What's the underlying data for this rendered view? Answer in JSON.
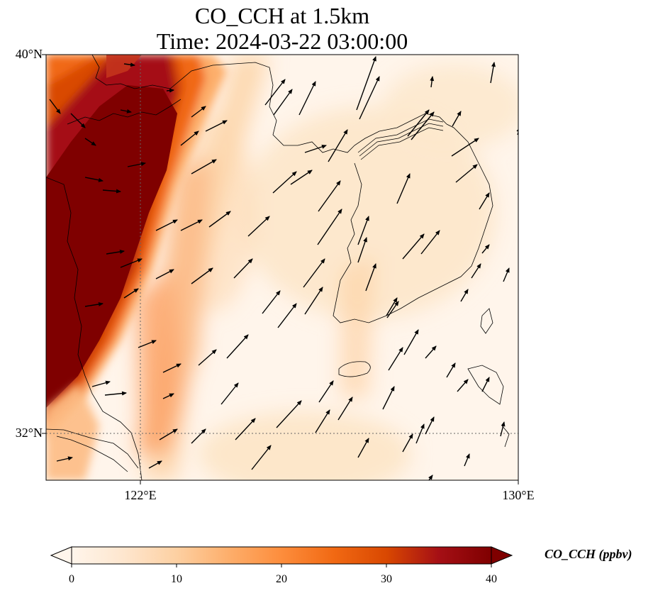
{
  "title": {
    "line1": "CO_CCH at 1.5km",
    "line2": "Time: 2024-03-22 03:00:00"
  },
  "map": {
    "variable": "CO_CCH",
    "height": "1.5km",
    "time": "2024-03-22 03:00:00",
    "extent": {
      "lon_min": 120.0,
      "lon_max": 130.0,
      "lat_min": 31.0,
      "lat_max": 40.0
    },
    "lat_labels": [
      {
        "value": 40,
        "text": "40°N"
      },
      {
        "value": 32,
        "text": "32°N"
      }
    ],
    "lon_labels": [
      {
        "value": 122,
        "text": "122°E"
      },
      {
        "value": 130,
        "text": "130°E"
      }
    ],
    "gridlines": {
      "lat": [
        32
      ],
      "lon": [
        122
      ],
      "style": "dotted"
    },
    "concentration_field": "high CO (>40 ppbv) over eastern China coast and Bohai/Yellow Sea west of ~122°E; moderate band ~10–20 ppbv along 123–124°E; low values (<10 ppbv) over Yellow Sea, Korea and East Sea",
    "wind_arrows": "southwesterly winds predominantly toward the northeast"
  },
  "colorbar": {
    "label": "CO_CCH (ppbv)",
    "min": 0,
    "max": 40,
    "ticks": [
      "0",
      "10",
      "20",
      "30",
      "40"
    ],
    "extend": "both",
    "colormap": [
      "#fff5eb",
      "#fee6ce",
      "#fdd0a2",
      "#fdae6b",
      "#fd8d3c",
      "#f16913",
      "#d94801",
      "#a50f15",
      "#7f0000"
    ]
  },
  "colors": {
    "low": "#fff5eb",
    "mid": "#fdd0a2",
    "high": "#7f0000"
  }
}
